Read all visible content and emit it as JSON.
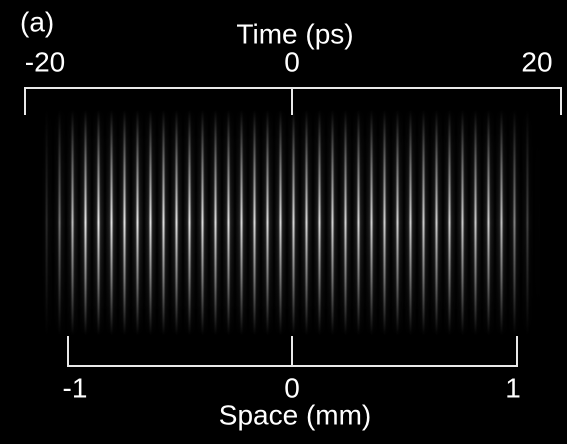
{
  "panel_label": "(a)",
  "top_axis": {
    "label": "Time (ps)",
    "ticks": [
      "-20",
      "0",
      "20"
    ]
  },
  "bottom_axis": {
    "label": "Space (mm)",
    "ticks": [
      "-1",
      "0",
      "1"
    ]
  }
}
